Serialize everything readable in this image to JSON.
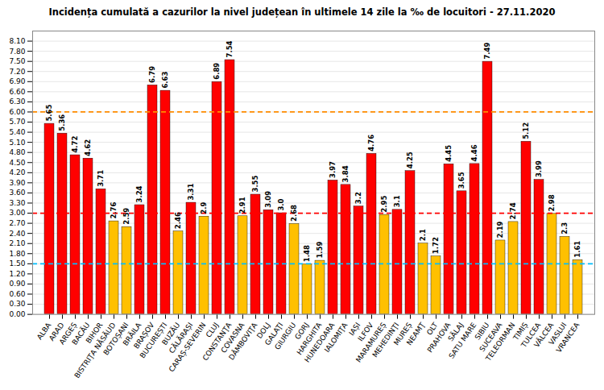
{
  "chart_data": {
    "type": "bar",
    "title": "Incidența cumulată a cazurilor la nivel județean în ultimele 14 zile la ‰ de locuitori - 27.11.2020",
    "categories": [
      "ALBA",
      "ARAD",
      "ARGEȘ",
      "BACĂU",
      "BIHOR",
      "BISTRIŢA NĂSĂUD",
      "BOTOȘANI",
      "BRĂILA",
      "BRAȘOV",
      "BUCUREȘTI",
      "BUZĂU",
      "CĂLĂRAȘI",
      "CARAȘ-SEVERIN",
      "CLUJ",
      "CONSTANŢA",
      "COVASNA",
      "DÂMBOVIŢA",
      "DOLJ",
      "GALAŢI",
      "GIURGIU",
      "GORJ",
      "HARGHITA",
      "HUNEDOARA",
      "IALOMIŢA",
      "IAȘI",
      "ILFOV",
      "MARAMUREȘ",
      "MEHEDINŢI",
      "MUREȘ",
      "NEAMŢ",
      "OLT",
      "PRAHOVA",
      "SĂLAJ",
      "SATU MARE",
      "SIBIU",
      "SUCEAVA",
      "TELEORMAN",
      "TIMIȘ",
      "TULCEA",
      "VÂLCEA",
      "VASLUI",
      "VRANCEA"
    ],
    "values": [
      5.65,
      5.36,
      4.72,
      4.62,
      3.71,
      2.76,
      2.59,
      3.24,
      6.79,
      6.63,
      2.46,
      3.31,
      2.9,
      6.89,
      7.54,
      2.91,
      3.55,
      3.09,
      3.0,
      2.68,
      1.48,
      1.59,
      3.97,
      3.84,
      3.2,
      4.76,
      2.95,
      3.1,
      4.25,
      2.1,
      1.72,
      4.45,
      3.65,
      4.46,
      7.49,
      2.19,
      2.74,
      5.12,
      3.99,
      2.98,
      2.3,
      1.61
    ],
    "value_labels": [
      "5.65",
      "5.36",
      "4.72",
      "4.62",
      "3.71",
      "2.76",
      "2.59",
      "3.24",
      "6.79",
      "6.63",
      "2.46",
      "3.31",
      "2.9",
      "6.89",
      "7.54",
      "2.91",
      "3.55",
      "3.09",
      "3.0",
      "2.68",
      "1.48",
      "1.59",
      "3.97",
      "3.84",
      "3.2",
      "4.76",
      "2.95",
      "3.1",
      "4.25",
      "2.1",
      "1.72",
      "4.45",
      "3.65",
      "4.46",
      "7.49",
      "2.19",
      "2.74",
      "5.12",
      "3.99",
      "2.98",
      "2.3",
      "1.61"
    ],
    "colors": [
      "#FF0000",
      "#FF0000",
      "#FF0000",
      "#FF0000",
      "#FF0000",
      "#FFC000",
      "#FFC000",
      "#FF0000",
      "#FF0000",
      "#FF0000",
      "#FFC000",
      "#FF0000",
      "#FFC000",
      "#FF0000",
      "#FF0000",
      "#FFC000",
      "#FF0000",
      "#FF0000",
      "#FF0000",
      "#FFC000",
      "#FFC000",
      "#FFC000",
      "#FF0000",
      "#FF0000",
      "#FF0000",
      "#FF0000",
      "#FFC000",
      "#FF0000",
      "#FF0000",
      "#FFC000",
      "#FFC000",
      "#FF0000",
      "#FF0000",
      "#FF0000",
      "#FF0000",
      "#FFC000",
      "#FFC000",
      "#FF0000",
      "#FF0000",
      "#FFC000",
      "#FFC000",
      "#FFC000"
    ],
    "hlines": [
      {
        "value": 6.0,
        "color": "#FF8C00"
      },
      {
        "value": 3.0,
        "color": "#FF0000"
      },
      {
        "value": 1.5,
        "color": "#00BFFF"
      }
    ],
    "ylim": [
      0,
      8.4
    ],
    "yticks": [
      {
        "value": 0.0,
        "label": "0.00"
      },
      {
        "value": 0.3,
        "label": "0.30"
      },
      {
        "value": 0.6,
        "label": "0.60"
      },
      {
        "value": 0.9,
        "label": "0.90"
      },
      {
        "value": 1.2,
        "label": "1.20"
      },
      {
        "value": 1.5,
        "label": "1.50"
      },
      {
        "value": 1.8,
        "label": "1.80"
      },
      {
        "value": 2.1,
        "label": "2.10"
      },
      {
        "value": 2.4,
        "label": "2.40"
      },
      {
        "value": 2.7,
        "label": "2.70"
      },
      {
        "value": 3.0,
        "label": "3.00"
      },
      {
        "value": 3.3,
        "label": "3.30"
      },
      {
        "value": 3.6,
        "label": "3.60"
      },
      {
        "value": 3.9,
        "label": "3.90"
      },
      {
        "value": 4.2,
        "label": "4.20"
      },
      {
        "value": 4.5,
        "label": "4.50"
      },
      {
        "value": 4.8,
        "label": "4.80"
      },
      {
        "value": 5.1,
        "label": "5.10"
      },
      {
        "value": 5.4,
        "label": "5.40"
      },
      {
        "value": 5.7,
        "label": "5.70"
      },
      {
        "value": 6.0,
        "label": "6.00"
      },
      {
        "value": 6.3,
        "label": "6.30"
      },
      {
        "value": 6.6,
        "label": "6.60"
      },
      {
        "value": 6.9,
        "label": "6.90"
      },
      {
        "value": 7.2,
        "label": "7.20"
      },
      {
        "value": 7.5,
        "label": "7.50"
      },
      {
        "value": 7.8,
        "label": "7.80"
      },
      {
        "value": 8.1,
        "label": "8.10"
      }
    ],
    "grid": true,
    "data_labels": true
  }
}
